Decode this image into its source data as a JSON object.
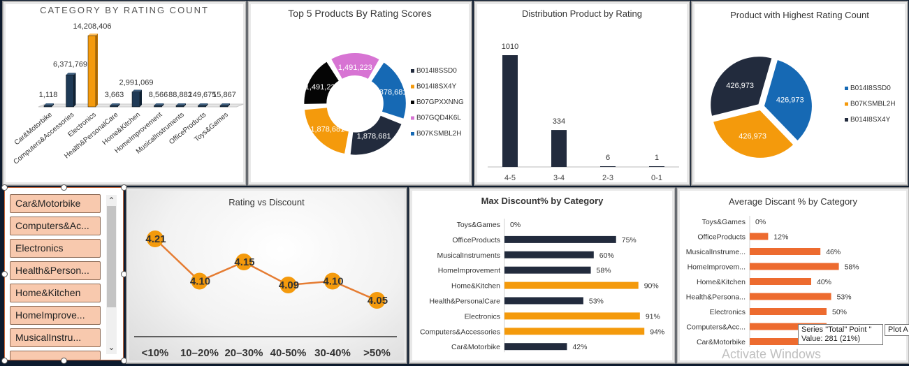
{
  "category_rating": {
    "title": "CATEGORY BY RATING COUNT",
    "categories": [
      "Car&Motorbike",
      "Computers&Accessories",
      "Electronics",
      "Health&PersonalCare",
      "Home&Kitchen",
      "HomeImprovement",
      "MusicalInstruments",
      "OfficeProducts",
      "Toys&Games"
    ],
    "values": [
      "1,118",
      "6,371,769",
      "14,208,406",
      "3,663",
      "2,991,069",
      "8,566",
      "88,882",
      "149,675",
      "15,867"
    ]
  },
  "top5": {
    "title": "Top 5 Products By Rating Scores",
    "legend": [
      "B014I8SSD0",
      "B014I8SX4Y",
      "B07GPXXNNG",
      "B07GQD4K6L",
      "B07KSMBL2H"
    ],
    "slice_labels": [
      "1,878,681",
      "1,878,681",
      "1,878,681",
      "1,491,223",
      "1,491,223"
    ],
    "colors": {
      "B014I8SSD0": "#222b3d",
      "B014I8SX4Y": "#f49a0c",
      "B07GPXXNNG": "#050505",
      "B07GQD4K6L": "#d774d3",
      "B07KSMBL2H": "#1669b4"
    }
  },
  "distribution": {
    "title": "Distribution Product by Rating",
    "categories": [
      "4-5",
      "3-4",
      "2-3",
      "0-1"
    ],
    "values": [
      "1010",
      "334",
      "6",
      "1"
    ]
  },
  "highest": {
    "title": "Product with Highest Rating Count",
    "legend": [
      "B014I8SSD0",
      "B07KSMBL2H",
      "B014I8SX4Y"
    ],
    "slice_labels": [
      "426,973",
      "426,973",
      "426,973"
    ]
  },
  "slicer": {
    "items": [
      "Car&Motorbike",
      "Computers&Ac...",
      "Electronics",
      "Health&Person...",
      "Home&Kitchen",
      "HomeImprove...",
      "MusicalInstru..."
    ],
    "scroll_up": "⌃",
    "scroll_down": "⌄"
  },
  "rating_discount": {
    "title": "Rating vs Discount",
    "categories": [
      "<10%",
      "10–20%",
      "20–30%",
      "40-50%",
      "30-40%",
      ">50%"
    ],
    "values": [
      "4.21",
      "4.10",
      "4.15",
      "4.09",
      "4.10",
      "4.05"
    ]
  },
  "max_discount": {
    "title": "Max Discount% by Category",
    "categories": [
      "Toys&Games",
      "OfficeProducts",
      "MusicalInstruments",
      "HomeImprovement",
      "Home&Kitchen",
      "Health&PersonalCare",
      "Electronics",
      "Computers&Accessories",
      "Car&Motorbike"
    ],
    "values": [
      "0%",
      "75%",
      "60%",
      "58%",
      "90%",
      "53%",
      "91%",
      "94%",
      "42%"
    ]
  },
  "avg_discount": {
    "title": "Average Discant % by Category",
    "categories": [
      "Toys&Games",
      "OfficeProducts",
      "MusicalInstrume...",
      "HomeImprovem...",
      "Home&Kitchen",
      "Health&Persona...",
      "Electronics",
      "Computers&Acc...",
      "Car&Motorbike"
    ],
    "values": [
      "0%",
      "12%",
      "46%",
      "58%",
      "40%",
      "53%",
      "50%",
      "",
      ""
    ]
  },
  "tooltip": {
    "line1": "Series \"Total\" Point \"",
    "line2": "Value: 281 (21%)",
    "side": "Plot A"
  },
  "watermark": "Activate Windows",
  "chart_data": [
    {
      "type": "bar",
      "title": "CATEGORY BY RATING COUNT",
      "categories": [
        "Car&Motorbike",
        "Computers&Accessories",
        "Electronics",
        "Health&PersonalCare",
        "Home&Kitchen",
        "HomeImprovement",
        "MusicalInstruments",
        "OfficeProducts",
        "Toys&Games"
      ],
      "values": [
        1118,
        6371769,
        14208406,
        3663,
        2991069,
        8566,
        88882,
        149675,
        15867
      ],
      "ylim": [
        0,
        14208406
      ],
      "highlight": {
        "Electronics": "#f49a0c"
      }
    },
    {
      "type": "pie",
      "title": "Top 5 Products By Rating Scores",
      "categories": [
        "B07KSMBL2H",
        "B014I8SSD0",
        "B014I8SX4Y",
        "B07GPXXNNG",
        "B07GQD4K6L"
      ],
      "values": [
        1878681,
        1878681,
        1878681,
        1491223,
        1491223
      ],
      "legend": "right"
    },
    {
      "type": "bar",
      "title": "Distribution Product by Rating",
      "categories": [
        "4-5",
        "3-4",
        "2-3",
        "0-1"
      ],
      "values": [
        1010,
        334,
        6,
        1
      ]
    },
    {
      "type": "pie",
      "title": "Product with Highest Rating Count",
      "categories": [
        "B014I8SSD0",
        "B07KSMBL2H",
        "B014I8SX4Y"
      ],
      "values": [
        426973,
        426973,
        426973
      ],
      "legend": "right"
    },
    {
      "type": "line",
      "title": "Rating vs Discount",
      "categories": [
        "<10%",
        "10–20%",
        "20–30%",
        "40-50%",
        "30-40%",
        ">50%"
      ],
      "values": [
        4.21,
        4.1,
        4.15,
        4.09,
        4.1,
        4.05
      ],
      "ylim": [
        4.0,
        4.25
      ]
    },
    {
      "type": "bar",
      "title": "Max Discount% by Category",
      "orientation": "horizontal",
      "categories": [
        "Toys&Games",
        "OfficeProducts",
        "MusicalInstruments",
        "HomeImprovement",
        "Home&Kitchen",
        "Health&PersonalCare",
        "Electronics",
        "Computers&Accessories",
        "Car&Motorbike"
      ],
      "values": [
        0,
        75,
        60,
        58,
        90,
        53,
        91,
        94,
        42
      ],
      "xlim": [
        0,
        100
      ]
    },
    {
      "type": "bar",
      "title": "Average Discant % by Category",
      "orientation": "horizontal",
      "categories": [
        "Toys&Games",
        "OfficeProducts",
        "MusicalInstruments",
        "HomeImprovement",
        "Home&Kitchen",
        "Health&PersonalCare",
        "Electronics",
        "Computers&Accessories",
        "Car&Motorbike"
      ],
      "values": [
        0,
        12,
        46,
        58,
        40,
        53,
        50,
        50,
        50
      ],
      "xlim": [
        0,
        100
      ]
    }
  ]
}
